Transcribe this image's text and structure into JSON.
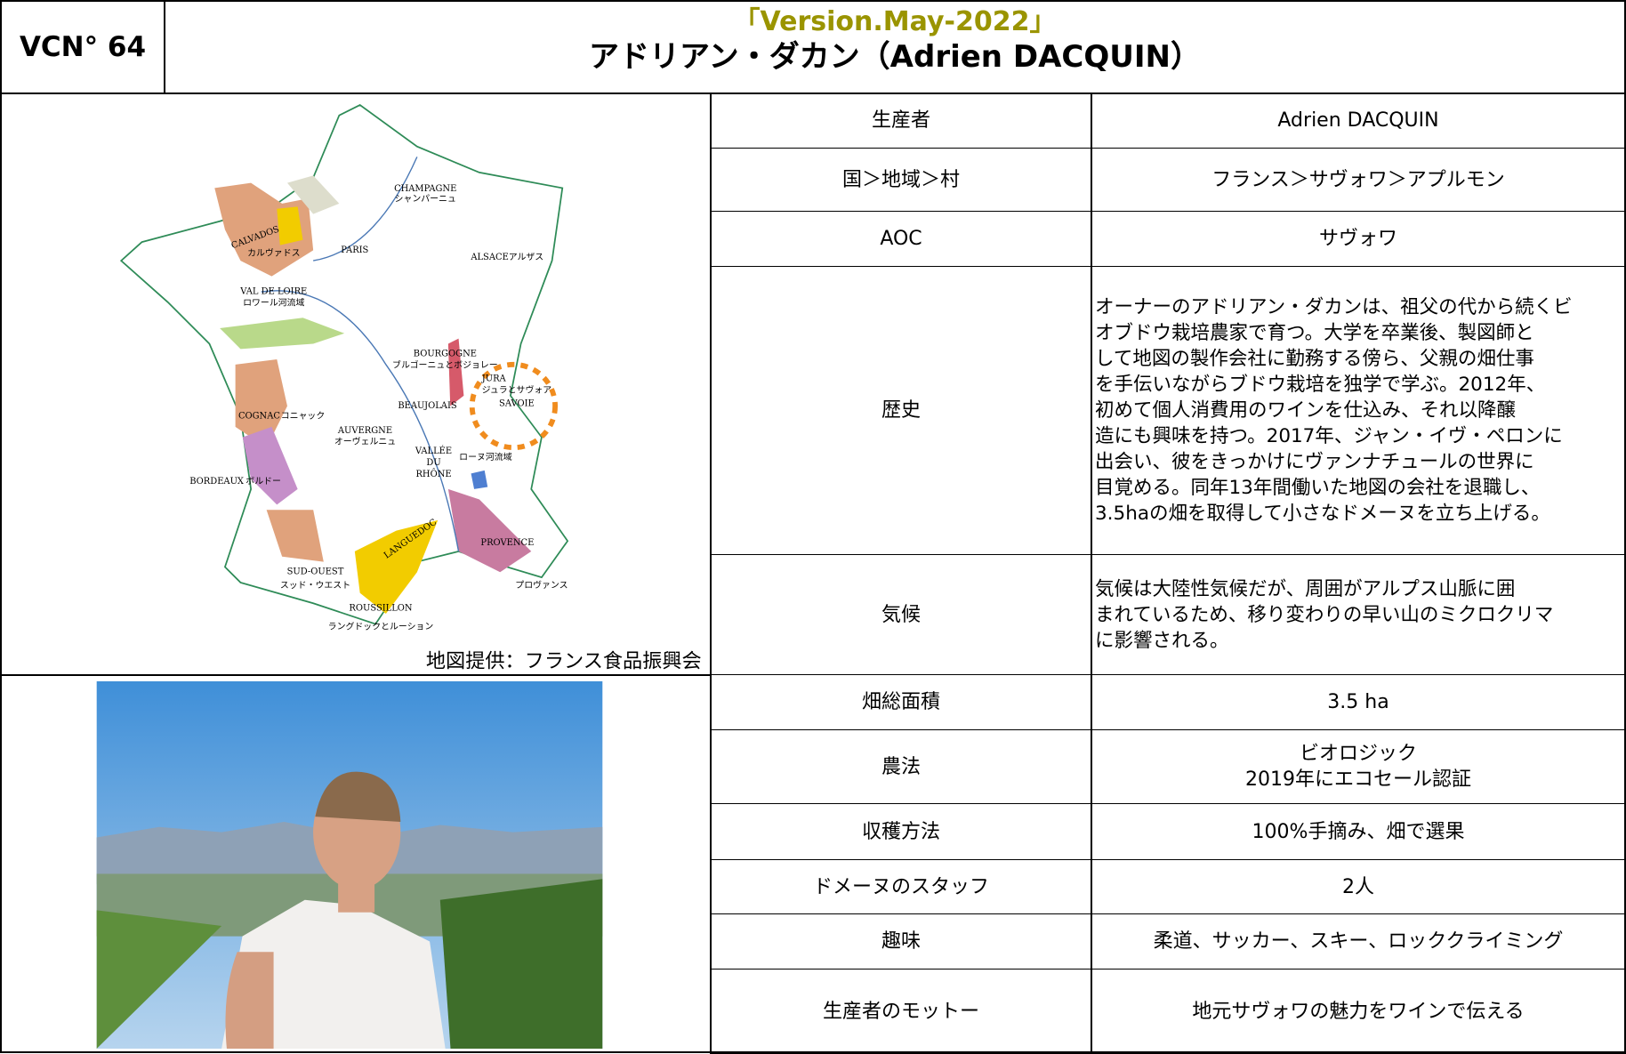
{
  "header": {
    "code": "VCN° 64",
    "version": "「Version.May-2022」",
    "title": "アドリアン・ダカン（Adrien DACQUIN）"
  },
  "map": {
    "caption": "地図提供：フランス食品振興会",
    "labels": [
      "CHAMPAGNE",
      "シャンパーニュ",
      "CALVADOS",
      "カルヴァドス",
      "PARIS",
      "ALSACE",
      "アルザス",
      "VAL DE LOIRE",
      "ロワール河流域",
      "BOURGOGNE",
      "ブルゴーニュとボジョレー",
      "JURA",
      "ジュラとサヴォア",
      "SAVOIE",
      "BEAUJOLAIS",
      "COGNAC",
      "コニャック",
      "AUVERGNE",
      "オーヴェルニュ",
      "VALLÉE",
      "DU",
      "RHÔNE",
      "ローヌ河流域",
      "BORDEAUX",
      "ボルドー",
      "LANGUEDOC",
      "PROVENCE",
      "プロヴァンス",
      "SUD-OUEST",
      "スッド・ウエスト",
      "ROUSSILLON",
      "ラングドックとルーション"
    ]
  },
  "table": {
    "rows": [
      {
        "label": "生産者",
        "value": [
          "Adrien DACQUIN"
        ]
      },
      {
        "label": "国＞地域＞村",
        "value": [
          "フランス＞サヴォワ＞アプルモン"
        ]
      },
      {
        "label": "AOC",
        "value": [
          "サヴォワ"
        ]
      },
      {
        "label": "歴史",
        "value": [
          "オーナーのアドリアン・ダカンは、祖父の代から続くビ",
          "オブドウ栽培農家で育つ。大学を卒業後、製図師と",
          "して地図の製作会社に勤務する傍ら、父親の畑仕事",
          "を手伝いながらブドウ栽培を独学で学ぶ。2012年、",
          "初めて個人消費用のワインを仕込み、それ以降醸",
          "造にも興味を持つ。2017年、ジャン・イヴ・ペロンに",
          "出会い、彼をきっかけにヴァンナチュールの世界に",
          "目覚める。同年13年間働いた地図の会社を退職し、",
          "3.5haの畑を取得して小さなドメーヌを立ち上げる。"
        ]
      },
      {
        "label": "気候",
        "value": [
          "気候は大陸性気候だが、周囲がアルプス山脈に囲",
          "まれているため、移り変わりの早い山のミクロクリマ",
          "に影響される。"
        ]
      },
      {
        "label": "畑総面積",
        "value": [
          "3.5 ha"
        ]
      },
      {
        "label": "農法",
        "value": [
          "ビオロジック",
          "2019年にエコセール認証"
        ]
      },
      {
        "label": "収穫方法",
        "value": [
          "100%手摘み、畑で選果"
        ]
      },
      {
        "label": "ドメーヌのスタッフ",
        "value": [
          "2人"
        ]
      },
      {
        "label": "趣味",
        "value": [
          "柔道、サッカー、スキー、ロッククライミング"
        ]
      },
      {
        "label": "生産者のモットー",
        "value": [
          "地元サヴォワの魅力をワインで伝える"
        ]
      }
    ]
  }
}
